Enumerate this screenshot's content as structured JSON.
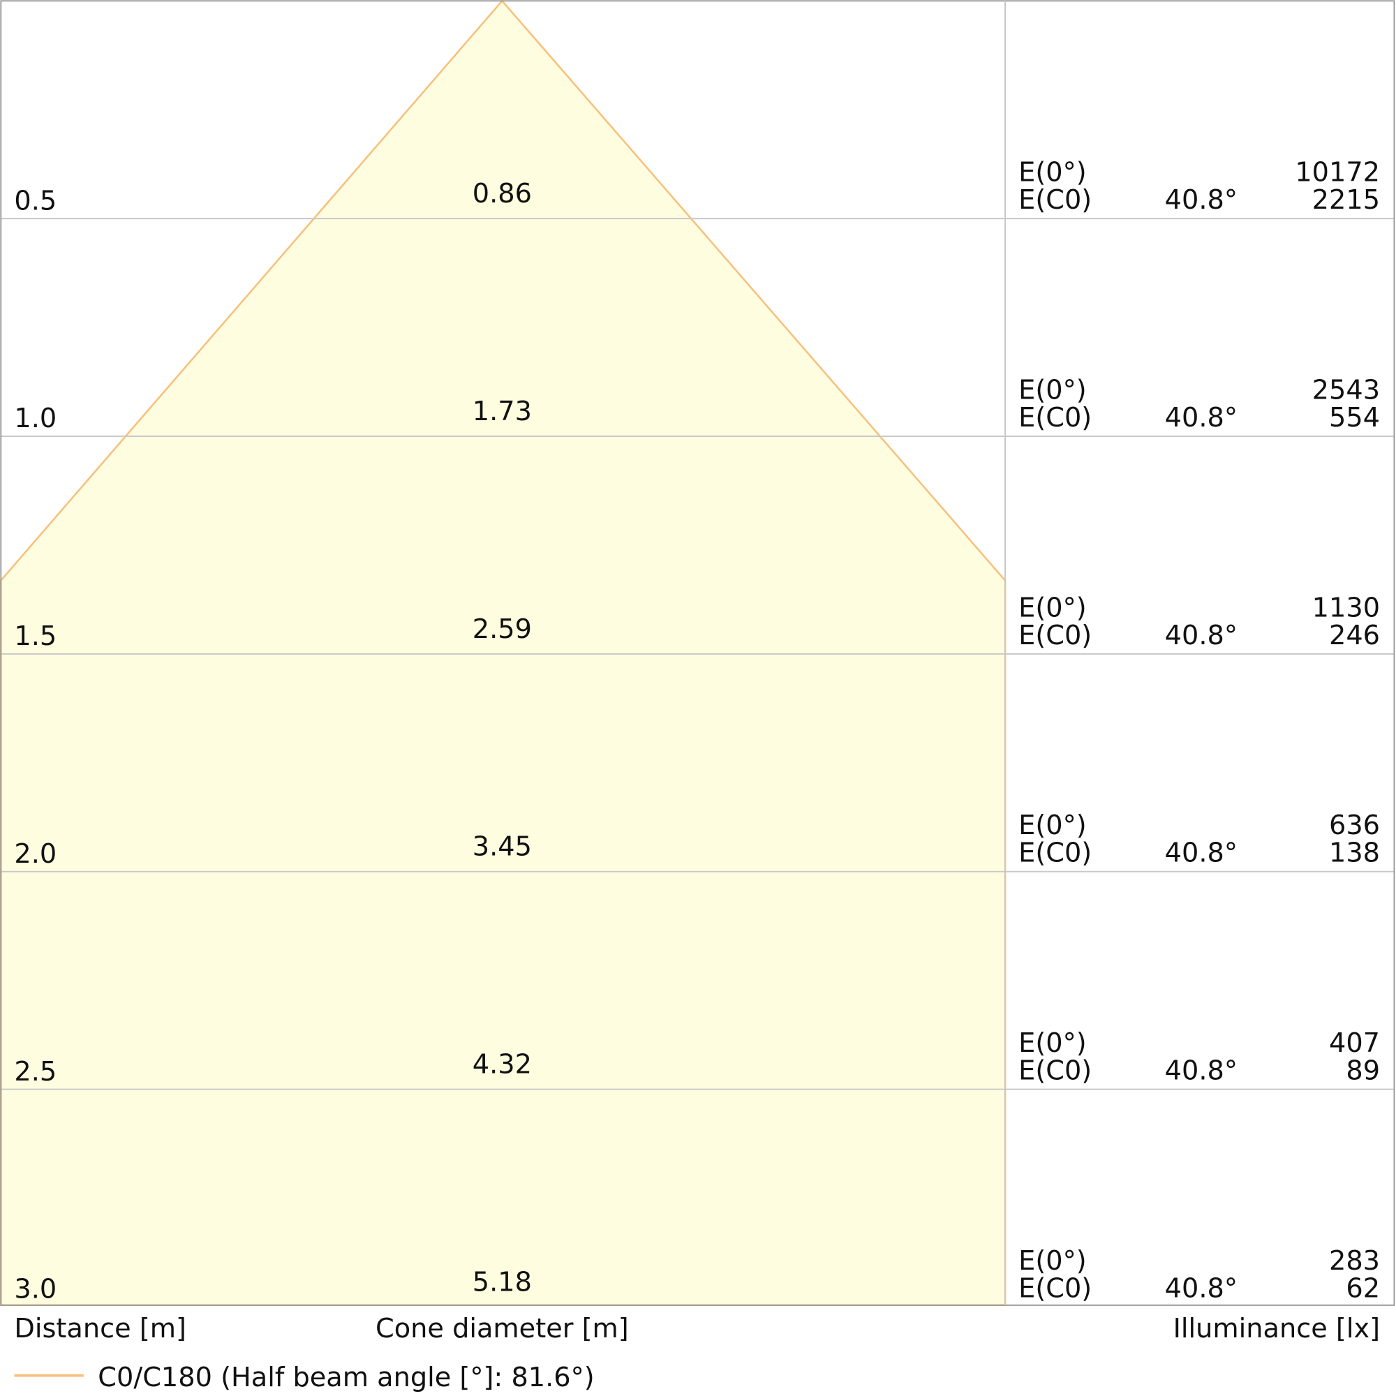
{
  "chart_data": {
    "type": "area",
    "xlabel": "Cone diameter [m]",
    "ylabel": "Distance [m]",
    "right_label": "Illuminance [lx]",
    "legend": "C0/C180 (Half beam angle [°]: 81.6°)",
    "half_beam_angle": 81.6,
    "colors": {
      "cone_fill": "#fffde0",
      "cone_stroke": "#f6c17e",
      "grid": "#c8c8c8"
    },
    "rows": [
      {
        "distance": "0.5",
        "diameter": "0.86",
        "e0_label": "E(0°)",
        "ec0_label": "E(C0)",
        "angle": "40.8°",
        "e0": "10172",
        "ec0": "2215"
      },
      {
        "distance": "1.0",
        "diameter": "1.73",
        "e0_label": "E(0°)",
        "ec0_label": "E(C0)",
        "angle": "40.8°",
        "e0": "2543",
        "ec0": "554"
      },
      {
        "distance": "1.5",
        "diameter": "2.59",
        "e0_label": "E(0°)",
        "ec0_label": "E(C0)",
        "angle": "40.8°",
        "e0": "1130",
        "ec0": "246"
      },
      {
        "distance": "2.0",
        "diameter": "3.45",
        "e0_label": "E(0°)",
        "ec0_label": "E(C0)",
        "angle": "40.8°",
        "e0": "636",
        "ec0": "138"
      },
      {
        "distance": "2.5",
        "diameter": "4.32",
        "e0_label": "E(0°)",
        "ec0_label": "E(C0)",
        "angle": "40.8°",
        "e0": "407",
        "ec0": "89"
      },
      {
        "distance": "3.0",
        "diameter": "5.18",
        "e0_label": "E(0°)",
        "ec0_label": "E(C0)",
        "angle": "40.8°",
        "e0": "283",
        "ec0": "62"
      }
    ]
  }
}
